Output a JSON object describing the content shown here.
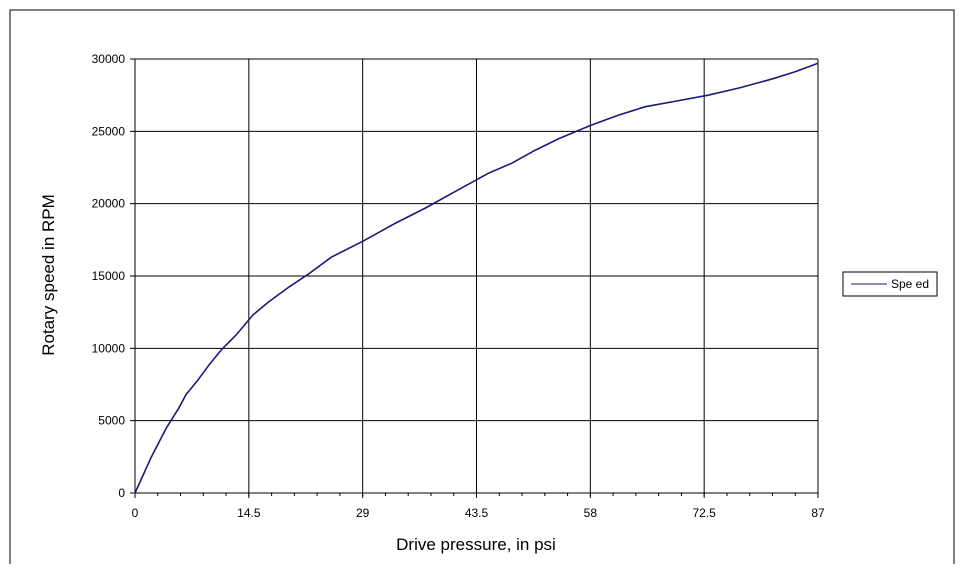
{
  "colors": {
    "series_line": "#1a1a7a",
    "grid": "#000000",
    "background": "#ffffff"
  },
  "chart_data": {
    "type": "line",
    "xlabel": "Drive pressure, in psi",
    "ylabel": "Rotary speed in RPM",
    "xlim": [
      0,
      87
    ],
    "ylim": [
      0,
      30000
    ],
    "x_ticks": [
      "0",
      "14.5",
      "29",
      "43.5",
      "58",
      "72.5",
      "87"
    ],
    "y_ticks": [
      "0",
      "5000",
      "10000",
      "15000",
      "20000",
      "25000",
      "30000"
    ],
    "grid": true,
    "legend_position": "right",
    "series": [
      {
        "name": "Spe ed",
        "x": [
          0,
          2,
          4,
          5.5,
          6.5,
          8,
          9.5,
          11,
          13,
          15,
          17,
          19.5,
          22,
          25,
          29,
          33,
          37,
          41,
          45,
          48,
          51,
          54,
          58,
          61.5,
          65,
          69,
          73,
          77,
          81,
          84,
          87
        ],
        "y": [
          0,
          2400,
          4500,
          5800,
          6800,
          7800,
          8900,
          9900,
          11000,
          12300,
          13200,
          14200,
          15100,
          16300,
          17400,
          18600,
          19700,
          20900,
          22100,
          22800,
          23700,
          24500,
          25400,
          26100,
          26700,
          27100,
          27500,
          28000,
          28600,
          29100,
          29700
        ]
      }
    ]
  }
}
